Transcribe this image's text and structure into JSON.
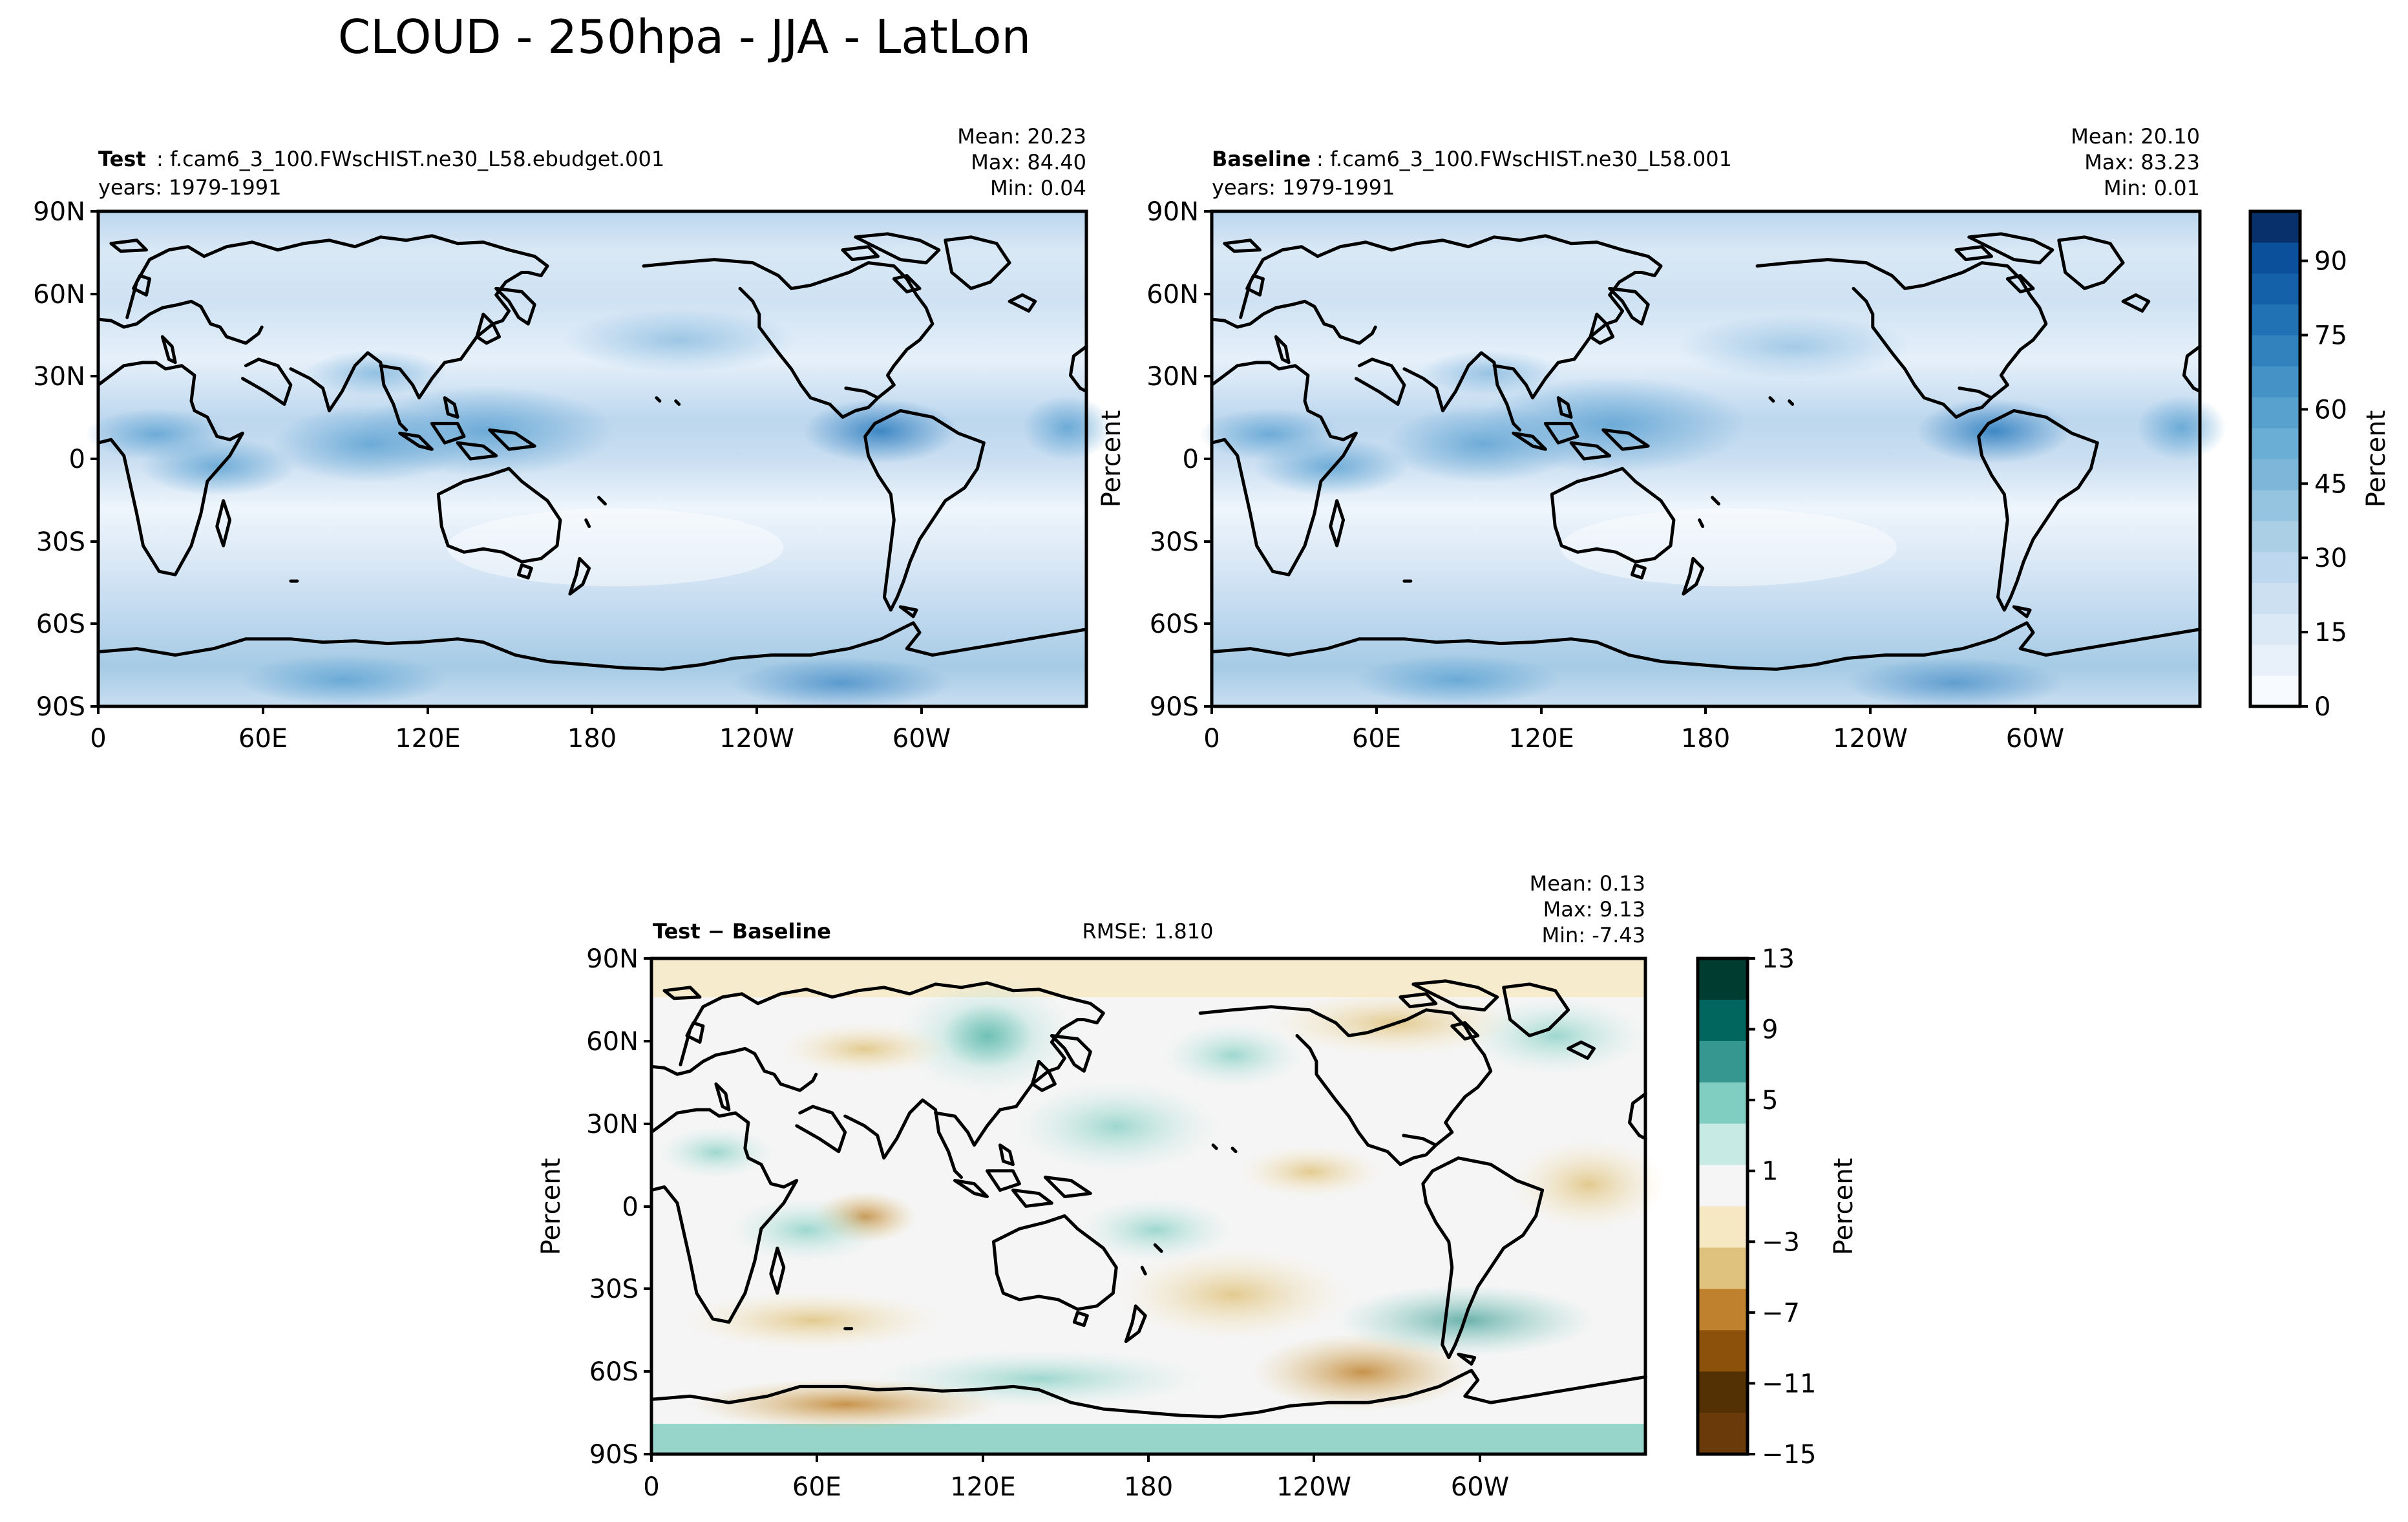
{
  "suptitle": "CLOUD - 250hpa - JJA - LatLon",
  "panels": [
    {
      "key": "test",
      "label_bold": "Test",
      "label_rest": ": f.cam6_3_100.FWscHIST.ne30_L58.ebudget.001",
      "years": "years: 1979-1991",
      "stats": [
        "Mean: 20.23",
        "Max: 84.40",
        "Min:  0.04"
      ],
      "ylabel": ""
    },
    {
      "key": "baseline",
      "label_bold": "Baseline",
      "label_rest": ": f.cam6_3_100.FWscHIST.ne30_L58.001",
      "years": "years: 1979-1991",
      "stats": [
        "Mean: 20.10",
        "Max: 83.23",
        "Min:  0.01"
      ],
      "ylabel": "Percent"
    },
    {
      "key": "diff",
      "label_bold": "Test − Baseline",
      "rmse": "RMSE: 1.810",
      "stats": [
        "Mean:  0.13",
        "Max:  9.13",
        "Min: -7.43"
      ],
      "ylabel": "Percent"
    }
  ],
  "axes": {
    "lat_ticks": [
      "90N",
      "60N",
      "30N",
      "0",
      "30S",
      "60S",
      "90S"
    ],
    "lon_ticks": [
      "0",
      "60E",
      "120E",
      "180",
      "120W",
      "60W"
    ]
  },
  "colorbars": [
    {
      "key": "seq",
      "label": "Percent",
      "ticks": [
        "0",
        "15",
        "30",
        "45",
        "60",
        "75",
        "90"
      ],
      "range": [
        0,
        100
      ],
      "colors": [
        "#f7fbff",
        "#e8f1fa",
        "#dbe9f6",
        "#cde0f1",
        "#bdd7ee",
        "#abd0e6",
        "#94c4df",
        "#7db6d9",
        "#6aaed6",
        "#58a1cf",
        "#4592c6",
        "#3282be",
        "#2171b5",
        "#1561a9",
        "#0b509a",
        "#08306b"
      ]
    },
    {
      "key": "div",
      "label": "Percent",
      "ticks": [
        "13",
        "9",
        "5",
        "1",
        "−3",
        "−7",
        "−11",
        "−15"
      ],
      "range": [
        -15,
        13
      ],
      "colors": [
        "#003c30",
        "#01665e",
        "#35978f",
        "#80cdc1",
        "#c7eae5",
        "#f5f5f5",
        "#f6e8c3",
        "#dfc27d",
        "#bf812d",
        "#8c510a",
        "#543005",
        "#6b3a0a"
      ]
    }
  ],
  "chart_data": [
    {
      "type": "heatmap",
      "title": "Test : f.cam6_3_100.FWscHIST.ne30_L58.ebudget.001",
      "ylabel": "",
      "x_ticks": [
        "0",
        "60E",
        "120E",
        "180",
        "120W",
        "60W"
      ],
      "y_ticks": [
        "90N",
        "60N",
        "30N",
        "0",
        "30S",
        "60S",
        "90S"
      ],
      "value_range": [
        0,
        100
      ],
      "mean": 20.23,
      "max": 84.4,
      "min": 0.04,
      "colormap": "Blues"
    },
    {
      "type": "heatmap",
      "title": "Baseline : f.cam6_3_100.FWscHIST.ne30_L58.001",
      "ylabel": "Percent",
      "x_ticks": [
        "0",
        "60E",
        "120E",
        "180",
        "120W",
        "60W"
      ],
      "y_ticks": [
        "90N",
        "60N",
        "30N",
        "0",
        "30S",
        "60S",
        "90S"
      ],
      "value_range": [
        0,
        100
      ],
      "mean": 20.1,
      "max": 83.23,
      "min": 0.01,
      "colormap": "Blues"
    },
    {
      "type": "heatmap",
      "title": "Test − Baseline",
      "ylabel": "Percent",
      "x_ticks": [
        "0",
        "60E",
        "120E",
        "180",
        "120W",
        "60W"
      ],
      "y_ticks": [
        "90N",
        "60N",
        "30N",
        "0",
        "30S",
        "60S",
        "90S"
      ],
      "value_range": [
        -15,
        13
      ],
      "mean": 0.13,
      "max": 9.13,
      "min": -7.43,
      "rmse": 1.81,
      "colormap": "BrBG"
    }
  ]
}
